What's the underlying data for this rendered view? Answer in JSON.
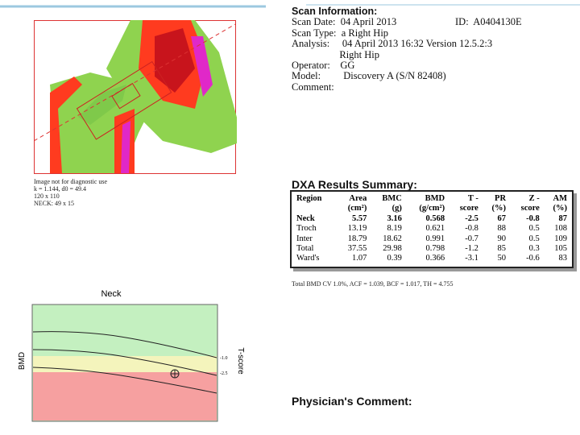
{
  "scan_info": {
    "heading": "Scan Information:",
    "lines": [
      "Scan Date:  04 April 2013",
      "Scan Type:  a Right Hip",
      "Analysis:     04 April 2013 16:32 Version 12.5.2:3",
      "                   Right Hip",
      "Operator:    GG",
      "Model:         Discovery A (S/N 82408)",
      "Comment:"
    ],
    "id": "ID:  A0404130E"
  },
  "image_note": [
    "Image not for diagnostic use",
    "k = 1.144, d0 = 49.4",
    "120 x 110",
    "NECK: 49 x 15"
  ],
  "results": {
    "heading": "DXA Results Summary:",
    "header": [
      [
        "Region",
        ""
      ],
      [
        "Area",
        "(cm²)"
      ],
      [
        "BMC",
        "(g)"
      ],
      [
        "BMD",
        "(g/cm²)"
      ],
      [
        "T -",
        "score"
      ],
      [
        "PR",
        "(%)"
      ],
      [
        "Z -",
        "score"
      ],
      [
        "AM",
        "(%)"
      ]
    ],
    "rows": [
      [
        "Neck",
        "5.57",
        "3.16",
        "0.568",
        "-2.5",
        "67",
        "-0.8",
        "87"
      ],
      [
        "Troch",
        "13.19",
        "8.19",
        "0.621",
        "-0.8",
        "88",
        "0.5",
        "108"
      ],
      [
        "Inter",
        "18.79",
        "18.62",
        "0.991",
        "-0.7",
        "90",
        "0.5",
        "109"
      ],
      [
        "Total",
        "37.55",
        "29.98",
        "0.798",
        "-1.2",
        "85",
        "0.3",
        "105"
      ],
      [
        "Ward's",
        "1.07",
        "0.39",
        "0.366",
        "-3.1",
        "50",
        "-0.6",
        "83"
      ]
    ],
    "footnote": "Total BMD CV 1.0%, ACF = 1.039, BCF = 1.017, TH = 4.755"
  },
  "chart": {
    "title": "Neck",
    "y_label": "BMD",
    "right_label": "T-score",
    "thresholds": [
      "-1.0",
      "-2.5"
    ]
  },
  "physician": {
    "heading": "Physician's Comment:"
  }
}
